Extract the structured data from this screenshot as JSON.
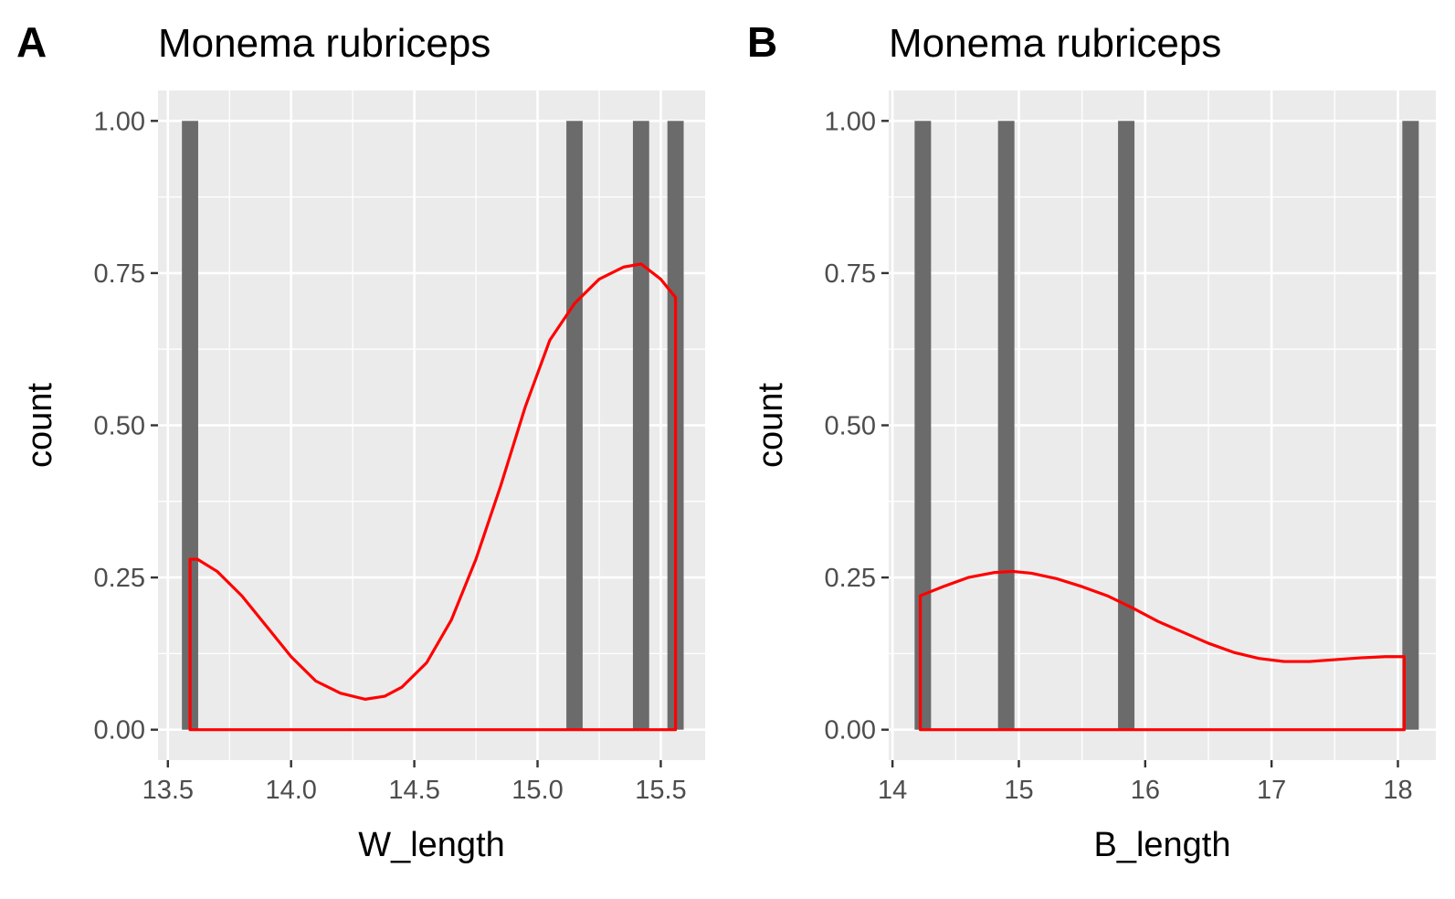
{
  "chart_data": [
    {
      "type": "bar",
      "panel_tag": "A",
      "title": "Monema rubriceps",
      "xlabel": "W_length",
      "ylabel": "count",
      "xlim": [
        13.46,
        15.68
      ],
      "ylim": [
        -0.05,
        1.05
      ],
      "x_ticks": [
        13.5,
        14.0,
        14.5,
        15.0,
        15.5
      ],
      "x_tick_labels": [
        "13.5",
        "14.0",
        "14.5",
        "15.0",
        "15.5"
      ],
      "y_ticks": [
        0,
        0.25,
        0.5,
        0.75,
        1.0
      ],
      "y_tick_labels": [
        "0.00",
        "0.25",
        "0.50",
        "0.75",
        "1.00"
      ],
      "grid": true,
      "bar_color": "#6b6b6b",
      "bar_width": 0.066,
      "bars": [
        {
          "x": 13.59,
          "count": 1
        },
        {
          "x": 15.15,
          "count": 1
        },
        {
          "x": 15.42,
          "count": 1
        },
        {
          "x": 15.56,
          "count": 1
        }
      ],
      "density_color": "#ff0000",
      "density": {
        "x": [
          13.59,
          13.62,
          13.7,
          13.8,
          13.9,
          14.0,
          14.1,
          14.2,
          14.3,
          14.38,
          14.45,
          14.55,
          14.65,
          14.75,
          14.85,
          14.95,
          15.05,
          15.15,
          15.25,
          15.35,
          15.42,
          15.5,
          15.56
        ],
        "y": [
          0.28,
          0.28,
          0.26,
          0.22,
          0.17,
          0.12,
          0.08,
          0.06,
          0.05,
          0.055,
          0.07,
          0.11,
          0.18,
          0.28,
          0.4,
          0.53,
          0.64,
          0.7,
          0.74,
          0.76,
          0.765,
          0.74,
          0.71
        ]
      }
    },
    {
      "type": "bar",
      "panel_tag": "B",
      "title": "Monema rubriceps",
      "xlabel": "B_length",
      "ylabel": "count",
      "xlim": [
        13.97,
        18.3
      ],
      "ylim": [
        -0.05,
        1.05
      ],
      "x_ticks": [
        14,
        15,
        16,
        17,
        18
      ],
      "x_tick_labels": [
        "14",
        "15",
        "16",
        "17",
        "18"
      ],
      "y_ticks": [
        0,
        0.25,
        0.5,
        0.75,
        1.0
      ],
      "y_tick_labels": [
        "0.00",
        "0.25",
        "0.50",
        "0.75",
        "1.00"
      ],
      "grid": true,
      "bar_color": "#6b6b6b",
      "bar_width": 0.13,
      "bars": [
        {
          "x": 14.24,
          "count": 1
        },
        {
          "x": 14.9,
          "count": 1
        },
        {
          "x": 15.85,
          "count": 1
        },
        {
          "x": 18.1,
          "count": 1
        }
      ],
      "density_color": "#ff0000",
      "density": {
        "x": [
          14.22,
          14.4,
          14.6,
          14.8,
          14.95,
          15.1,
          15.3,
          15.5,
          15.7,
          15.9,
          16.1,
          16.3,
          16.5,
          16.7,
          16.9,
          17.1,
          17.3,
          17.5,
          17.7,
          17.9,
          18.05
        ],
        "y": [
          0.22,
          0.235,
          0.25,
          0.258,
          0.26,
          0.257,
          0.248,
          0.235,
          0.22,
          0.2,
          0.178,
          0.16,
          0.142,
          0.127,
          0.117,
          0.112,
          0.112,
          0.115,
          0.118,
          0.12,
          0.12
        ]
      }
    }
  ]
}
